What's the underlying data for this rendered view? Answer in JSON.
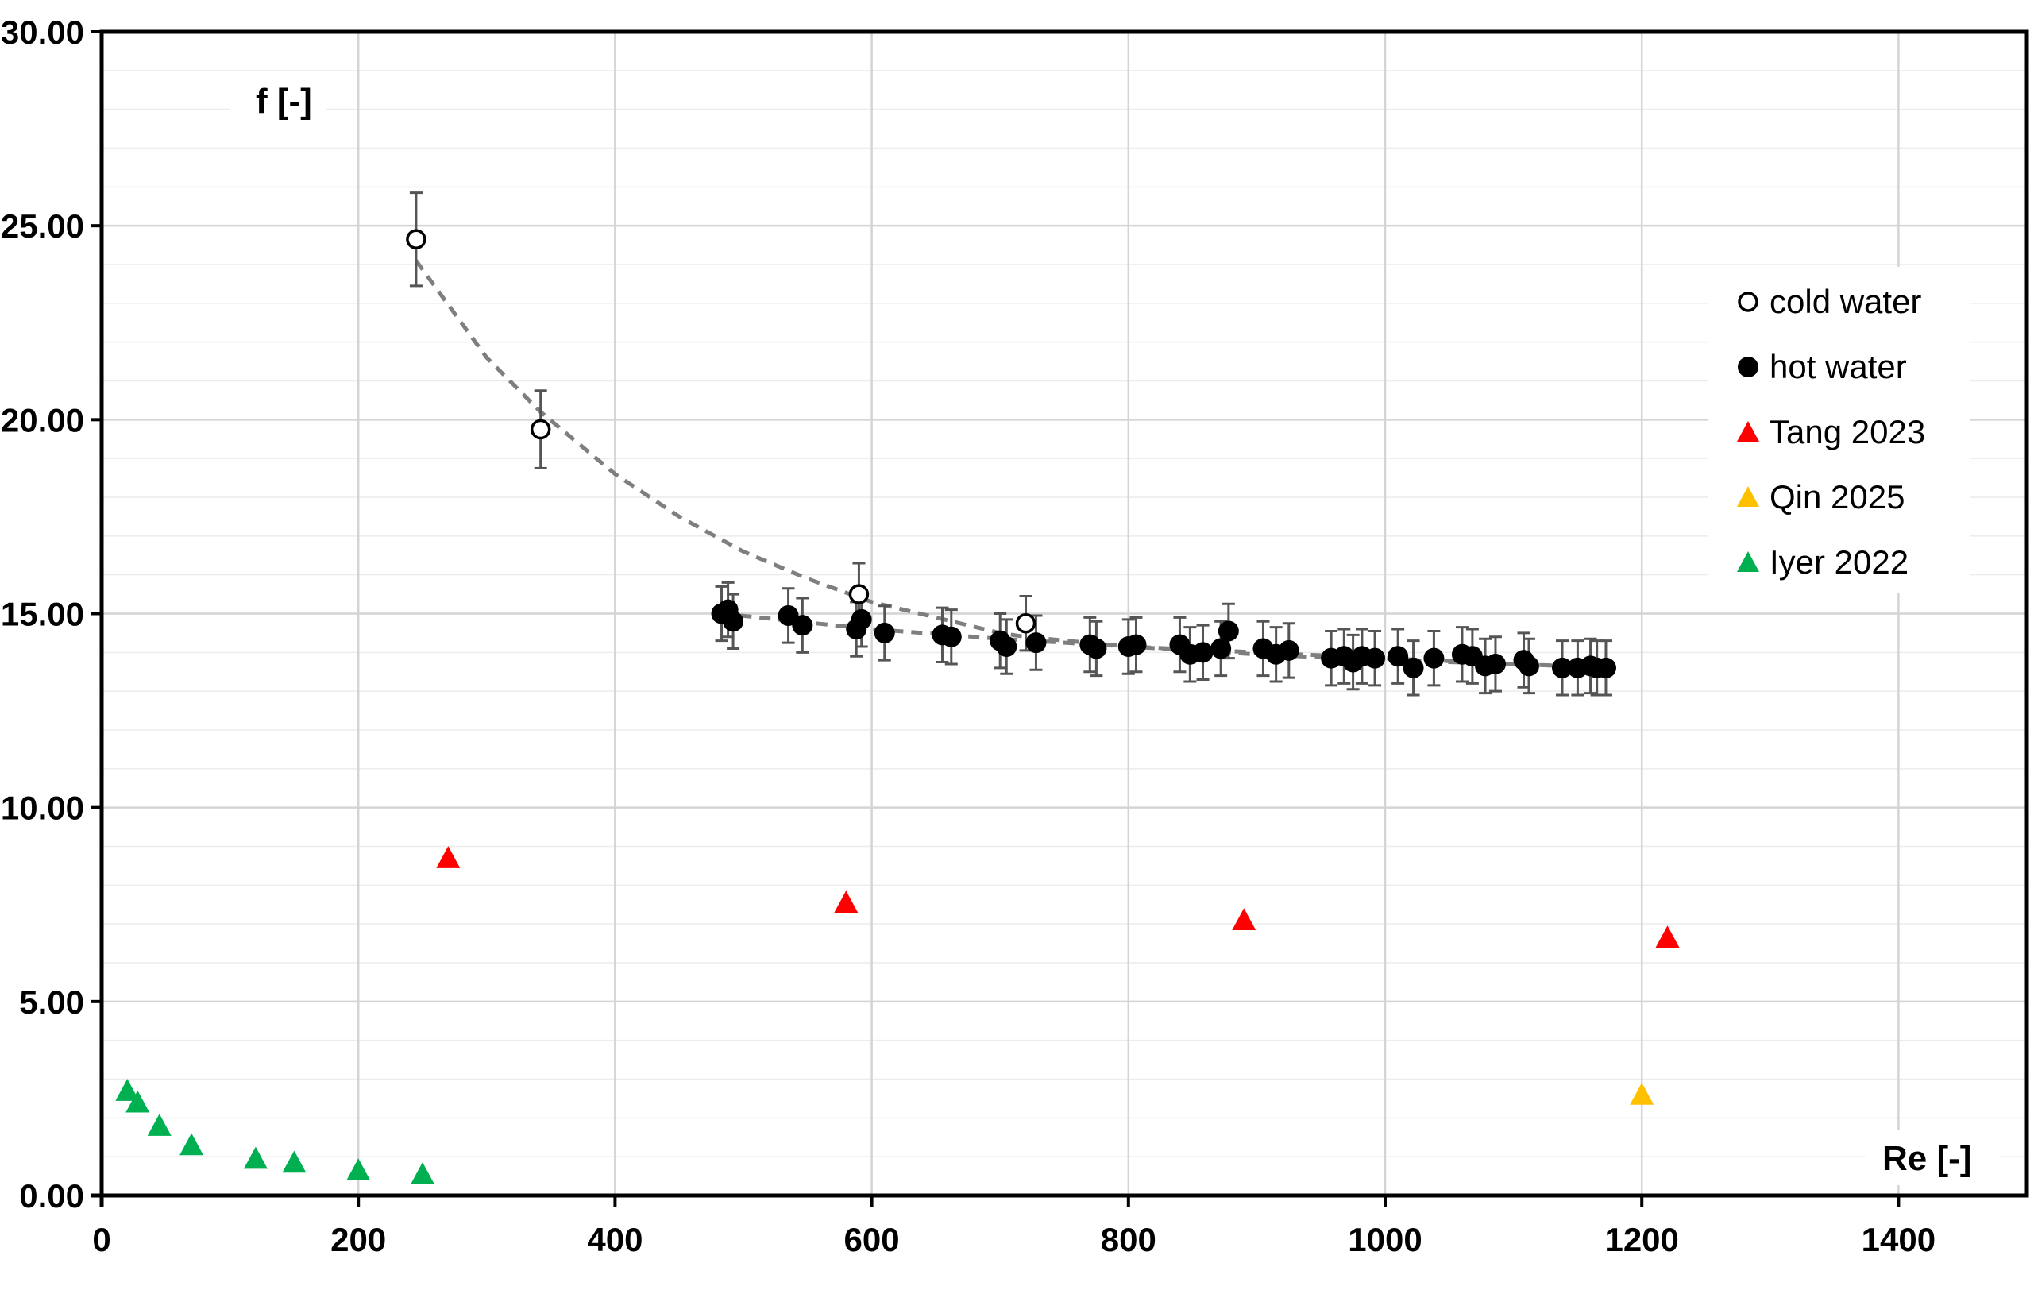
{
  "chart_data": {
    "type": "scatter",
    "xlabel": "Re [-]",
    "ylabel": "f [-]",
    "xlim": [
      0,
      1500
    ],
    "ylim": [
      0,
      30
    ],
    "x_ticks": [
      0,
      200,
      400,
      600,
      800,
      1000,
      1200,
      1400
    ],
    "x_tick_labels": [
      "0",
      "200",
      "400",
      "600",
      "800",
      "1000",
      "1200",
      "1400"
    ],
    "y_ticks": [
      0,
      5,
      10,
      15,
      20,
      25,
      30
    ],
    "y_tick_labels": [
      "0.00",
      "5.00",
      "10.00",
      "15.00",
      "20.00",
      "25.00",
      "30.00"
    ],
    "grid": true,
    "minor_grid_y_step": 1,
    "legend_position": "right",
    "series": [
      {
        "name": "cold water",
        "marker": "circle-open",
        "color": "#000000",
        "error_bars": true,
        "points": [
          [
            245,
            24.65,
            1.2
          ],
          [
            342,
            19.75,
            1.0
          ],
          [
            590,
            15.5,
            0.8
          ],
          [
            720,
            14.75,
            0.7
          ]
        ]
      },
      {
        "name": "hot water",
        "marker": "circle-filled",
        "color": "#000000",
        "error_bars": true,
        "points": [
          [
            483,
            15.0,
            0.7
          ],
          [
            488,
            15.1,
            0.7
          ],
          [
            492,
            14.8,
            0.7
          ],
          [
            535,
            14.95,
            0.7
          ],
          [
            546,
            14.7,
            0.7
          ],
          [
            588,
            14.6,
            0.7
          ],
          [
            592,
            14.85,
            0.7
          ],
          [
            610,
            14.5,
            0.7
          ],
          [
            655,
            14.45,
            0.7
          ],
          [
            662,
            14.4,
            0.7
          ],
          [
            700,
            14.3,
            0.7
          ],
          [
            705,
            14.15,
            0.7
          ],
          [
            728,
            14.25,
            0.7
          ],
          [
            770,
            14.2,
            0.7
          ],
          [
            775,
            14.1,
            0.7
          ],
          [
            800,
            14.15,
            0.7
          ],
          [
            806,
            14.2,
            0.7
          ],
          [
            840,
            14.2,
            0.7
          ],
          [
            848,
            13.95,
            0.7
          ],
          [
            858,
            14.0,
            0.7
          ],
          [
            872,
            14.1,
            0.7
          ],
          [
            878,
            14.55,
            0.7
          ],
          [
            905,
            14.1,
            0.7
          ],
          [
            915,
            13.95,
            0.7
          ],
          [
            925,
            14.05,
            0.7
          ],
          [
            958,
            13.85,
            0.7
          ],
          [
            968,
            13.9,
            0.7
          ],
          [
            975,
            13.75,
            0.7
          ],
          [
            982,
            13.9,
            0.7
          ],
          [
            992,
            13.85,
            0.7
          ],
          [
            1010,
            13.9,
            0.7
          ],
          [
            1022,
            13.6,
            0.7
          ],
          [
            1038,
            13.85,
            0.7
          ],
          [
            1060,
            13.95,
            0.7
          ],
          [
            1068,
            13.9,
            0.7
          ],
          [
            1078,
            13.65,
            0.7
          ],
          [
            1086,
            13.7,
            0.7
          ],
          [
            1108,
            13.8,
            0.7
          ],
          [
            1112,
            13.65,
            0.7
          ],
          [
            1138,
            13.6,
            0.7
          ],
          [
            1150,
            13.6,
            0.7
          ],
          [
            1160,
            13.65,
            0.7
          ],
          [
            1165,
            13.6,
            0.7
          ],
          [
            1172,
            13.6,
            0.7
          ]
        ]
      },
      {
        "name": "Tang 2023",
        "marker": "triangle",
        "color": "#ff0000",
        "points": [
          [
            270,
            8.7
          ],
          [
            580,
            7.55
          ],
          [
            890,
            7.1
          ],
          [
            1220,
            6.65
          ]
        ]
      },
      {
        "name": "Qin 2025",
        "marker": "triangle",
        "color": "#ffc000",
        "points": [
          [
            1200,
            2.6
          ]
        ]
      },
      {
        "name": "Iyer 2022",
        "marker": "triangle",
        "color": "#00b050",
        "points": [
          [
            20,
            2.7
          ],
          [
            28,
            2.4
          ],
          [
            45,
            1.8
          ],
          [
            70,
            1.3
          ],
          [
            120,
            0.95
          ],
          [
            150,
            0.85
          ],
          [
            200,
            0.65
          ],
          [
            250,
            0.55
          ]
        ]
      }
    ],
    "trendlines": [
      {
        "style": "dashed",
        "color": "#7f7f7f",
        "points": [
          [
            245,
            24.1
          ],
          [
            300,
            21.6
          ],
          [
            342,
            20.2
          ],
          [
            400,
            18.6
          ],
          [
            450,
            17.5
          ],
          [
            500,
            16.6
          ],
          [
            550,
            15.9
          ],
          [
            600,
            15.3
          ],
          [
            650,
            14.9
          ],
          [
            700,
            14.5
          ],
          [
            720,
            14.4
          ],
          [
            800,
            14.15
          ],
          [
            900,
            13.95
          ],
          [
            1000,
            13.8
          ],
          [
            1100,
            13.7
          ],
          [
            1180,
            13.6
          ]
        ]
      },
      {
        "style": "dashed",
        "color": "#7f7f7f",
        "points": [
          [
            483,
            15.0
          ],
          [
            600,
            14.6
          ],
          [
            700,
            14.35
          ],
          [
            800,
            14.15
          ],
          [
            900,
            14.0
          ],
          [
            1000,
            13.85
          ],
          [
            1100,
            13.7
          ],
          [
            1180,
            13.6
          ]
        ]
      }
    ]
  }
}
